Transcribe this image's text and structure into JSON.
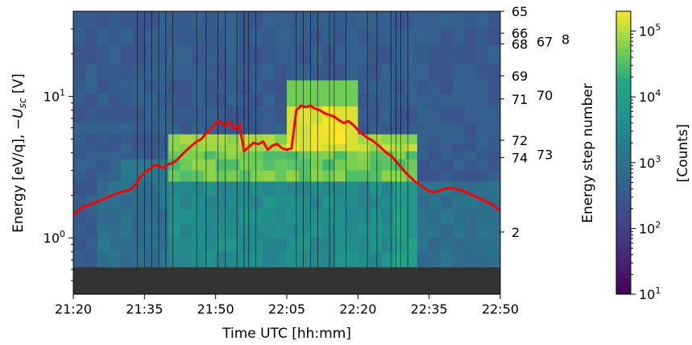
{
  "chart_data": {
    "type": "heatmap",
    "xlabel": "Time UTC [hh:mm]",
    "ylabel_prefix": "Energy [eV/q], −",
    "ylabel_symbol": "U",
    "ylabel_subscript": "sc",
    "ylabel_suffix": " [V]",
    "right_ylabel": "Energy step number",
    "colorbar_label": "[Counts]",
    "x_range_minutes": [
      0,
      90
    ],
    "x_ticks": [
      {
        "minute": 0,
        "label": "21:20"
      },
      {
        "minute": 15,
        "label": "21:35"
      },
      {
        "minute": 30,
        "label": "21:50"
      },
      {
        "minute": 45,
        "label": "22:05"
      },
      {
        "minute": 60,
        "label": "22:20"
      },
      {
        "minute": 75,
        "label": "22:35"
      },
      {
        "minute": 90,
        "label": "22:50"
      }
    ],
    "y_scale": "log",
    "y_range": [
      0.4,
      40
    ],
    "y_ticks": [
      {
        "value": 1,
        "base": "10",
        "exp": "0"
      },
      {
        "value": 10,
        "base": "10",
        "exp": "1"
      }
    ],
    "energy_steps": [
      {
        "label": "65",
        "value": 40
      },
      {
        "label": "66",
        "value": 28
      },
      {
        "label": "67",
        "value": 24.5,
        "offset": 1
      },
      {
        "label": "8",
        "value": 25.5,
        "offset": 2
      },
      {
        "label": "68",
        "value": 23.5
      },
      {
        "label": "69",
        "value": 14
      },
      {
        "label": "70",
        "value": 10.2,
        "offset": 1
      },
      {
        "label": "71",
        "value": 9.6
      },
      {
        "label": "72",
        "value": 4.9
      },
      {
        "label": "73",
        "value": 3.9,
        "offset": 1
      },
      {
        "label": "74",
        "value": 3.7
      },
      {
        "label": "2",
        "value": 1.1
      }
    ],
    "colorbar": {
      "scale": "log",
      "range": [
        10,
        200000
      ],
      "ticks": [
        {
          "value": 10,
          "base": "10",
          "exp": "1"
        },
        {
          "value": 100,
          "base": "10",
          "exp": "2"
        },
        {
          "value": 1000,
          "base": "10",
          "exp": "3"
        },
        {
          "value": 10000,
          "base": "10",
          "exp": "4"
        },
        {
          "value": 100000,
          "base": "10",
          "exp": "5"
        }
      ]
    },
    "missing_data_below": 0.62,
    "time_markers_minutes": [
      13.5,
      15,
      16.5,
      18,
      19.5,
      21,
      26,
      28,
      30.5,
      32,
      34.5,
      36,
      37,
      38.5,
      47,
      48.5,
      50,
      51.5,
      54,
      55,
      57.5,
      62,
      64,
      67,
      68,
      69,
      70.5
    ],
    "series": [
      {
        "color": "#ff0000",
        "x": [
          0,
          1.5,
          3,
          5,
          7,
          9,
          11,
          12,
          13,
          14,
          15,
          16,
          17,
          18,
          19,
          20,
          21,
          22,
          23,
          24,
          25,
          26,
          27,
          28,
          29,
          30,
          31,
          32,
          33,
          34,
          35,
          36,
          37,
          38,
          39,
          40,
          41,
          42,
          43,
          44,
          45,
          46,
          47,
          48,
          49,
          50,
          51,
          52,
          53,
          54,
          55,
          56,
          57,
          58,
          59,
          60,
          61,
          62,
          63,
          64,
          65,
          66,
          67,
          68,
          69,
          70,
          71,
          72,
          73,
          74,
          75,
          76,
          77,
          78,
          79,
          80,
          81,
          82,
          83,
          84,
          85,
          86,
          87,
          88,
          89,
          90
        ],
        "y": [
          1.45,
          1.62,
          1.7,
          1.8,
          1.92,
          2.05,
          2.15,
          2.2,
          2.35,
          2.65,
          2.9,
          3.05,
          3.25,
          3.25,
          3.1,
          3.3,
          3.4,
          3.6,
          3.9,
          4.2,
          4.5,
          4.8,
          5.0,
          5.5,
          5.9,
          6.5,
          6.7,
          6.2,
          6.6,
          5.9,
          6.3,
          4.1,
          4.4,
          4.7,
          4.6,
          4.8,
          4.2,
          4.5,
          4.6,
          4.3,
          4.2,
          4.3,
          8.0,
          8.6,
          8.4,
          8.6,
          8.2,
          8.0,
          7.6,
          7.4,
          7.2,
          6.8,
          6.5,
          6.7,
          6.3,
          5.8,
          5.4,
          5.1,
          4.9,
          4.6,
          4.3,
          4.0,
          3.8,
          3.5,
          3.2,
          2.9,
          2.7,
          2.5,
          2.4,
          2.25,
          2.15,
          2.1,
          2.15,
          2.2,
          2.25,
          2.25,
          2.2,
          2.15,
          2.1,
          2.0,
          1.95,
          1.88,
          1.8,
          1.75,
          1.65,
          1.55
        ]
      }
    ]
  }
}
